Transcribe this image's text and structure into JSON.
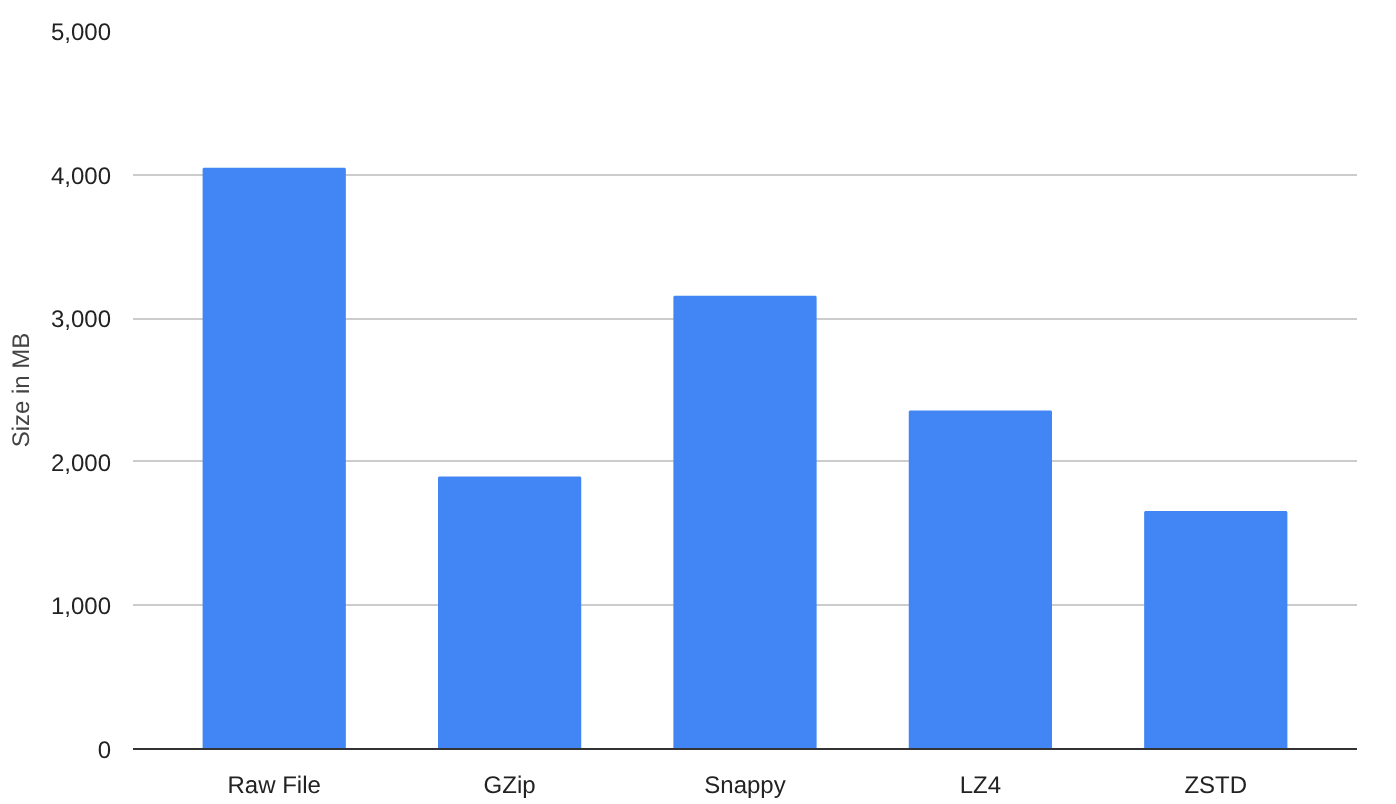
{
  "chart_data": {
    "type": "bar",
    "ylabel": "Size in MB",
    "categories": [
      "Raw File",
      "GZip",
      "Snappy",
      "LZ4",
      "ZSTD"
    ],
    "values": [
      4040,
      1890,
      3150,
      2350,
      1650
    ],
    "color": "#4285f4",
    "ylim": [
      0,
      5000
    ],
    "yticks": [
      {
        "value": 0,
        "label": "0"
      },
      {
        "value": 1000,
        "label": "1,000"
      },
      {
        "value": 2000,
        "label": "2,000"
      },
      {
        "value": 3000,
        "label": "3,000"
      },
      {
        "value": 4000,
        "label": "4,000"
      },
      {
        "value": 5000,
        "label": "5,000"
      }
    ],
    "grid": "y"
  }
}
